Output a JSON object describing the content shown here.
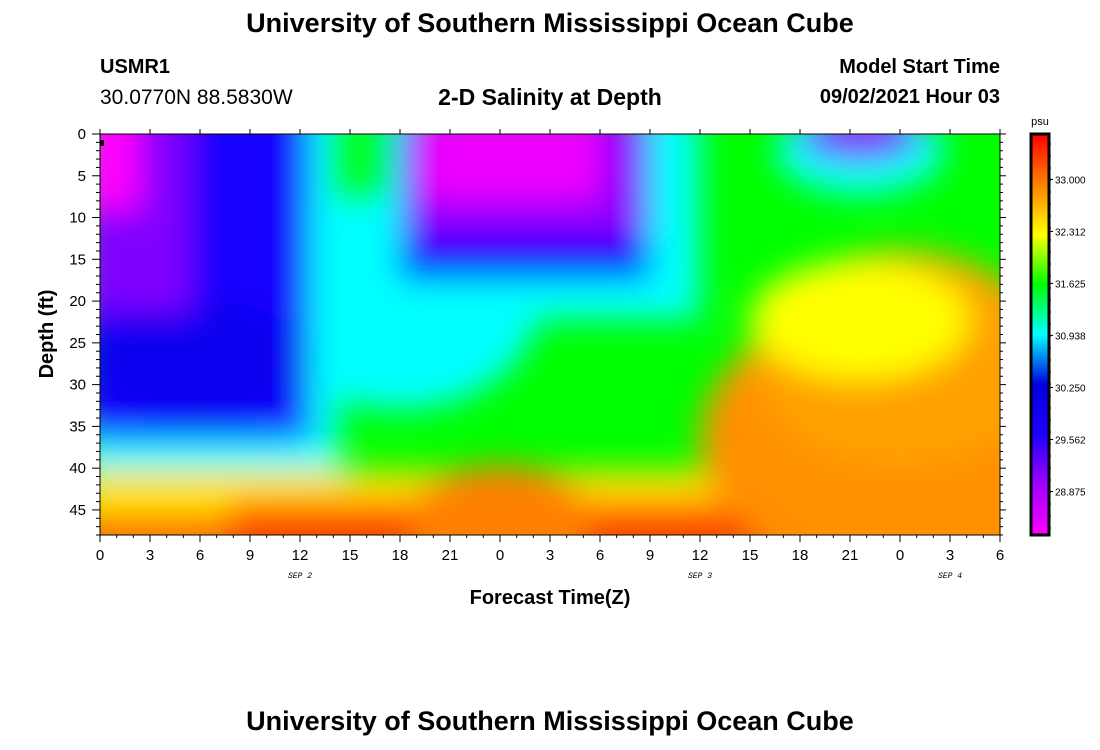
{
  "header": {
    "title": "University of Southern Mississippi Ocean Cube",
    "station": "USMR1",
    "coords": "30.0770N  88.5830W",
    "subtitle": "2-D Salinity at Depth",
    "model_start_label": "Model Start Time",
    "model_start_value": "09/02/2021 Hour 03"
  },
  "footer": {
    "title": "University of Southern Mississippi Ocean Cube"
  },
  "chart_data": {
    "type": "heatmap",
    "title": "2-D Salinity at Depth",
    "xlabel": "Forecast Time(Z)",
    "ylabel": "Depth (ft)",
    "x_hours_range": [
      0,
      54
    ],
    "x_tick_labels": [
      "0",
      "3",
      "6",
      "9",
      "12",
      "15",
      "18",
      "21",
      "0",
      "3",
      "6",
      "9",
      "12",
      "15",
      "18",
      "21",
      "0",
      "3",
      "6"
    ],
    "x_date_labels": [
      {
        "label": "SEP 2",
        "hour": 12
      },
      {
        "label": "SEP 3",
        "hour": 36
      },
      {
        "label": "SEP 4",
        "hour": 51
      }
    ],
    "ylim": [
      0,
      48
    ],
    "y_ticks": [
      0,
      5,
      10,
      15,
      20,
      25,
      30,
      35,
      40,
      45
    ],
    "y_inverted": true,
    "colorbar": {
      "unit": "psu",
      "labels": [
        "33.000",
        "32.312",
        "31.625",
        "30.938",
        "30.250",
        "29.562",
        "28.875"
      ],
      "range": [
        28.3,
        33.6
      ],
      "colors": [
        "#ff00ff",
        "#a000ff",
        "#2000ff",
        "#0000e0",
        "#00ffff",
        "#00ff00",
        "#ffff00",
        "#ff8000",
        "#ff0000"
      ]
    },
    "grid": false,
    "legend": "right"
  }
}
